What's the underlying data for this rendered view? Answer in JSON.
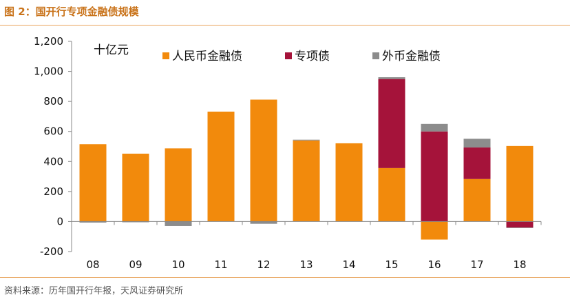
{
  "figure": {
    "title": "图 2：国开行专项金融债规模",
    "source": "资料来源：历年国开行年报，天风证券研究所"
  },
  "chart_data": {
    "type": "bar",
    "stacked": true,
    "unit_label": "十亿元",
    "categories": [
      "08",
      "09",
      "10",
      "11",
      "12",
      "13",
      "14",
      "15",
      "16",
      "17",
      "18"
    ],
    "ylim": [
      -200,
      1200
    ],
    "yticks": [
      -200,
      0,
      200,
      400,
      600,
      800,
      1000,
      1200
    ],
    "ytick_labels": [
      "-200",
      "0",
      "200",
      "400",
      "600",
      "800",
      "1,000",
      "1,200"
    ],
    "legend_position": "top",
    "series": [
      {
        "name": "人民币金融债",
        "color": "#f28a0c",
        "values": [
          515,
          452,
          487,
          732,
          812,
          540,
          521,
          356,
          -120,
          283,
          503
        ]
      },
      {
        "name": "专项债",
        "color": "#a5133a",
        "values": [
          0,
          0,
          0,
          0,
          0,
          0,
          0,
          593,
          600,
          210,
          -40
        ]
      },
      {
        "name": "外币金融债",
        "color": "#8c8c8c",
        "values": [
          -7,
          -5,
          -30,
          0,
          -15,
          5,
          0,
          12,
          50,
          58,
          -3
        ]
      }
    ]
  }
}
